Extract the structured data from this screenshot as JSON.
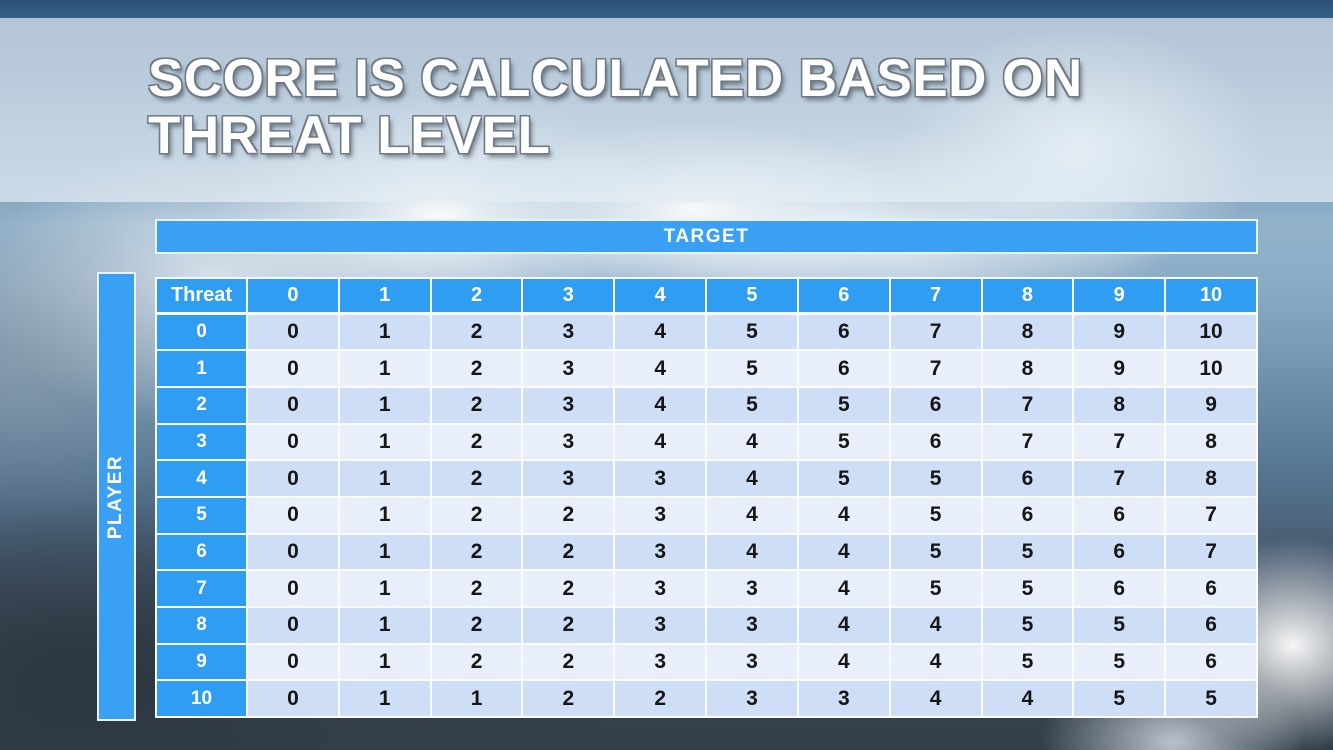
{
  "slide": {
    "title_line1": "SCORE IS CALCULATED BASED ON",
    "title_line2": "THREAT LEVEL"
  },
  "axes": {
    "target_label": "TARGET",
    "player_label": "PLAYER"
  },
  "table": {
    "corner_header": "Threat",
    "column_headers": [
      "0",
      "1",
      "2",
      "3",
      "4",
      "5",
      "6",
      "7",
      "8",
      "9",
      "10"
    ],
    "rows": [
      {
        "label": "0",
        "values": [
          0,
          1,
          2,
          3,
          4,
          5,
          6,
          7,
          8,
          9,
          10
        ]
      },
      {
        "label": "1",
        "values": [
          0,
          1,
          2,
          3,
          4,
          5,
          6,
          7,
          8,
          9,
          10
        ]
      },
      {
        "label": "2",
        "values": [
          0,
          1,
          2,
          3,
          4,
          5,
          5,
          6,
          7,
          8,
          9
        ]
      },
      {
        "label": "3",
        "values": [
          0,
          1,
          2,
          3,
          4,
          4,
          5,
          6,
          7,
          7,
          8
        ]
      },
      {
        "label": "4",
        "values": [
          0,
          1,
          2,
          3,
          3,
          4,
          5,
          5,
          6,
          7,
          8
        ]
      },
      {
        "label": "5",
        "values": [
          0,
          1,
          2,
          2,
          3,
          4,
          4,
          5,
          6,
          6,
          7
        ]
      },
      {
        "label": "6",
        "values": [
          0,
          1,
          2,
          2,
          3,
          4,
          4,
          5,
          5,
          6,
          7
        ]
      },
      {
        "label": "7",
        "values": [
          0,
          1,
          2,
          2,
          3,
          3,
          4,
          5,
          5,
          6,
          6
        ]
      },
      {
        "label": "8",
        "values": [
          0,
          1,
          2,
          2,
          3,
          3,
          4,
          4,
          5,
          5,
          6
        ]
      },
      {
        "label": "9",
        "values": [
          0,
          1,
          2,
          2,
          3,
          3,
          4,
          4,
          5,
          5,
          6
        ]
      },
      {
        "label": "10",
        "values": [
          0,
          1,
          1,
          2,
          2,
          3,
          3,
          4,
          4,
          5,
          5
        ]
      }
    ]
  },
  "colors": {
    "header_blue": "#2e9df2",
    "bar_blue": "#3aa0f3",
    "row_even": "#cfdef7",
    "row_odd": "#e9eefb",
    "border_white": "#fbfcfe"
  }
}
